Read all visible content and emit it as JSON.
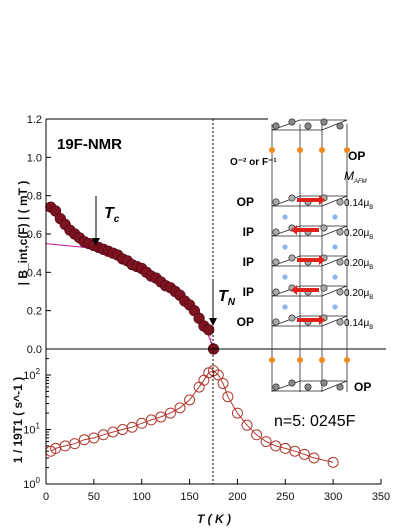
{
  "chart_data": [
    {
      "type": "scatter",
      "annotation_title": "19F-NMR",
      "ylabel": "| B_int,c(F) | ( mT )",
      "ylim": [
        0,
        1.2
      ],
      "yticks": [
        "0.0",
        "0.2",
        "0.4",
        "0.6",
        "0.8",
        "1.0",
        "1.2"
      ],
      "xlim": [
        0,
        350
      ],
      "markers": {
        "Tc": "T",
        "Tc_sub": "c",
        "TN": "T",
        "TN_sub": "N"
      },
      "Tc_x": 55,
      "TN_x": 175,
      "series": [
        {
          "x": [
            5,
            10,
            15,
            20,
            25,
            30,
            35,
            40,
            45,
            50,
            55,
            60,
            65,
            70,
            75,
            80,
            85,
            90,
            95,
            100,
            105,
            110,
            115,
            120,
            125,
            130,
            135,
            140,
            145,
            150,
            155,
            160,
            165,
            170,
            175
          ],
          "y": [
            0.74,
            0.72,
            0.68,
            0.65,
            0.62,
            0.6,
            0.58,
            0.56,
            0.55,
            0.54,
            0.53,
            0.52,
            0.51,
            0.5,
            0.49,
            0.47,
            0.46,
            0.44,
            0.43,
            0.42,
            0.4,
            0.38,
            0.37,
            0.35,
            0.33,
            0.32,
            0.3,
            0.28,
            0.25,
            0.23,
            0.2,
            0.16,
            0.12,
            0.1,
            0.0
          ]
        }
      ],
      "fit_curves": [
        {
          "x": [
            0,
            40,
            80,
            110,
            140,
            160,
            175
          ],
          "y": [
            0.55,
            0.53,
            0.48,
            0.41,
            0.3,
            0.2,
            0.0
          ]
        }
      ]
    },
    {
      "type": "line",
      "ylabel": "1 / 19T1 ( s^-1 )",
      "ylog": true,
      "ylim": [
        1,
        300
      ],
      "yticks": [
        {
          "base": "10",
          "exp": "0"
        },
        {
          "base": "10",
          "exp": "1"
        },
        {
          "base": "10",
          "exp": "2"
        }
      ],
      "xlabel": "T ( K )",
      "xlim": [
        0,
        350
      ],
      "xticks": [
        0,
        50,
        100,
        150,
        200,
        250,
        300,
        350
      ],
      "series": [
        {
          "x": [
            5,
            10,
            20,
            30,
            40,
            50,
            60,
            70,
            80,
            90,
            100,
            110,
            120,
            130,
            140,
            150,
            160,
            165,
            170,
            175,
            180,
            185,
            190,
            200,
            210,
            220,
            230,
            240,
            250,
            260,
            270,
            280,
            300
          ],
          "y": [
            4,
            4.5,
            5,
            5.5,
            6.5,
            7,
            8,
            9,
            10,
            11,
            13,
            15,
            17,
            20,
            25,
            35,
            60,
            80,
            110,
            120,
            100,
            70,
            40,
            20,
            12,
            8,
            6,
            5,
            4.5,
            4,
            3.5,
            3,
            2.5
          ]
        }
      ]
    }
  ],
  "structure": {
    "layers": [
      {
        "label": "OP",
        "moment": "0.14μ",
        "moment_sub": "B"
      },
      {
        "label": "IP",
        "moment": "0.20μ",
        "moment_sub": "B"
      },
      {
        "label": "IP",
        "moment": "0.20μ",
        "moment_sub": "B"
      },
      {
        "label": "IP",
        "moment": "0.20μ",
        "moment_sub": "B"
      },
      {
        "label": "OP",
        "moment": "0.14μ",
        "moment_sub": "B"
      }
    ],
    "top_label": "OP",
    "bottom_label": "OP",
    "apical_label": "O⁻² or F⁻¹",
    "moment_header": "M",
    "moment_header_sub": "AFM",
    "caption": "n=5: 0245F",
    "colors": {
      "plane_label": "#1f8b1f",
      "ip_label": "#1a2aa6",
      "apical_label": "#f08a1a",
      "spin_arrow": "#e0201a",
      "data_marker": "#7d1220"
    }
  }
}
